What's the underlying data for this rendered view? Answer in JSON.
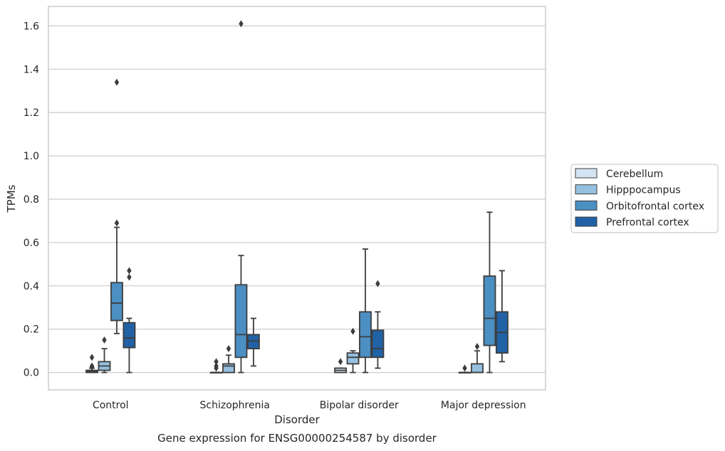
{
  "chart_data": {
    "type": "box",
    "title": "",
    "caption": "Gene expression for ENSG00000254587 by disorder",
    "xlabel": "Disorder",
    "ylabel": "TPMs",
    "ylim": [
      -0.08,
      1.69
    ],
    "yticks": [
      "0.0",
      "0.2",
      "0.4",
      "0.6",
      "0.8",
      "1.0",
      "1.2",
      "1.4",
      "1.6"
    ],
    "ytick_values": [
      0.0,
      0.2,
      0.4,
      0.6,
      0.8,
      1.0,
      1.2,
      1.4,
      1.6
    ],
    "grid": "horizontal",
    "legend_position": "right",
    "categories": [
      "Control",
      "Schizophrenia",
      "Bipolar disorder",
      "Major depression"
    ],
    "series": [
      {
        "name": "Cerebellum",
        "color": "#d4e3f2",
        "boxes": [
          {
            "whisker_low": 0.0,
            "q1": 0.0,
            "median": 0.005,
            "q3": 0.01,
            "whisker_high": 0.02,
            "outliers": [
              0.07,
              0.03,
              0.025
            ]
          },
          {
            "whisker_low": 0.0,
            "q1": 0.0,
            "median": 0.0,
            "q3": 0.0,
            "whisker_high": 0.0,
            "outliers": [
              0.05,
              0.03,
              0.02
            ]
          },
          {
            "whisker_low": 0.0,
            "q1": 0.0,
            "median": 0.01,
            "q3": 0.02,
            "whisker_high": 0.02,
            "outliers": [
              0.05
            ]
          },
          {
            "whisker_low": 0.0,
            "q1": 0.0,
            "median": 0.0,
            "q3": 0.0,
            "whisker_high": 0.0,
            "outliers": [
              0.02
            ]
          }
        ]
      },
      {
        "name": "Hipppocampus",
        "color": "#96c0df",
        "boxes": [
          {
            "whisker_low": 0.0,
            "q1": 0.01,
            "median": 0.03,
            "q3": 0.05,
            "whisker_high": 0.11,
            "outliers": [
              0.15
            ]
          },
          {
            "whisker_low": 0.0,
            "q1": 0.0,
            "median": 0.03,
            "q3": 0.04,
            "whisker_high": 0.08,
            "outliers": [
              0.11
            ]
          },
          {
            "whisker_low": 0.0,
            "q1": 0.04,
            "median": 0.07,
            "q3": 0.09,
            "whisker_high": 0.1,
            "outliers": [
              0.19
            ]
          },
          {
            "whisker_low": 0.0,
            "q1": 0.0,
            "median": 0.0,
            "q3": 0.04,
            "whisker_high": 0.1,
            "outliers": [
              0.12
            ]
          }
        ]
      },
      {
        "name": "Orbitofrontal cortex",
        "color": "#4b8fc3",
        "boxes": [
          {
            "whisker_low": 0.18,
            "q1": 0.24,
            "median": 0.32,
            "q3": 0.415,
            "whisker_high": 0.67,
            "outliers": [
              0.69,
              1.34
            ]
          },
          {
            "whisker_low": 0.0,
            "q1": 0.07,
            "median": 0.175,
            "q3": 0.405,
            "whisker_high": 0.54,
            "outliers": [
              1.61
            ]
          },
          {
            "whisker_low": 0.0,
            "q1": 0.07,
            "median": 0.165,
            "q3": 0.28,
            "whisker_high": 0.57,
            "outliers": []
          },
          {
            "whisker_low": 0.0,
            "q1": 0.125,
            "median": 0.25,
            "q3": 0.445,
            "whisker_high": 0.74,
            "outliers": []
          }
        ]
      },
      {
        "name": "Prefrontal cortex",
        "color": "#2162a6",
        "boxes": [
          {
            "whisker_low": 0.0,
            "q1": 0.115,
            "median": 0.16,
            "q3": 0.23,
            "whisker_high": 0.25,
            "outliers": [
              0.44,
              0.47
            ]
          },
          {
            "whisker_low": 0.03,
            "q1": 0.11,
            "median": 0.145,
            "q3": 0.175,
            "whisker_high": 0.25,
            "outliers": []
          },
          {
            "whisker_low": 0.02,
            "q1": 0.07,
            "median": 0.11,
            "q3": 0.195,
            "whisker_high": 0.28,
            "outliers": [
              0.41
            ]
          },
          {
            "whisker_low": 0.05,
            "q1": 0.09,
            "median": 0.185,
            "q3": 0.28,
            "whisker_high": 0.47,
            "outliers": []
          }
        ]
      }
    ]
  }
}
